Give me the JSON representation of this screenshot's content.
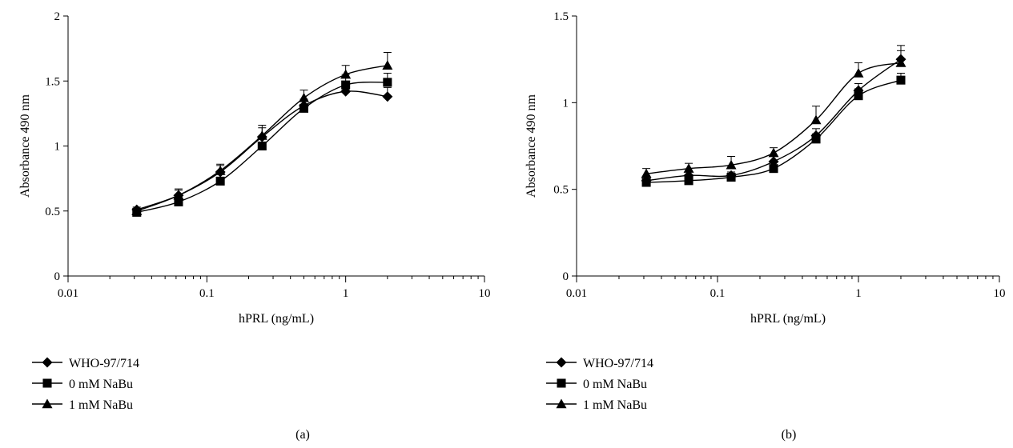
{
  "chart_data": [
    {
      "type": "scatter",
      "panel_label": "(a)",
      "xlabel": "hPRL (ng/mL)",
      "ylabel": "Absorbance 490 nm",
      "x_scale": "log",
      "xlim": [
        0.01,
        10
      ],
      "ylim": [
        0,
        2
      ],
      "x_ticks": [
        0.01,
        0.1,
        1,
        10
      ],
      "x_tick_labels": [
        "0.01",
        "0.1",
        "1",
        "10"
      ],
      "y_ticks": [
        0,
        0.5,
        1,
        1.5,
        2
      ],
      "y_tick_labels": [
        "0",
        "0.5",
        "1",
        "1.5",
        "2"
      ],
      "grid": false,
      "legend_position": "below",
      "x": [
        0.03125,
        0.0625,
        0.125,
        0.25,
        0.5,
        1,
        2
      ],
      "series": [
        {
          "name": "WHO-97/714",
          "marker": "diamond",
          "values": [
            0.51,
            0.62,
            0.8,
            1.07,
            1.31,
            1.42,
            1.38
          ],
          "errors": [
            0.02,
            0.04,
            0.05,
            0.07,
            0.05,
            0.06,
            0.07
          ]
        },
        {
          "name": "0 mM NaBu",
          "marker": "square",
          "values": [
            0.49,
            0.57,
            0.73,
            1.0,
            1.29,
            1.47,
            1.49
          ],
          "errors": [
            0.02,
            0.03,
            0.05,
            0.06,
            0.07,
            0.08,
            0.07
          ]
        },
        {
          "name": "1 mM NaBu",
          "marker": "triangle",
          "values": [
            0.5,
            0.62,
            0.81,
            1.08,
            1.37,
            1.55,
            1.62
          ],
          "errors": [
            0.02,
            0.05,
            0.05,
            0.08,
            0.06,
            0.07,
            0.1
          ]
        }
      ]
    },
    {
      "type": "scatter",
      "panel_label": "(b)",
      "xlabel": "hPRL (ng/mL)",
      "ylabel": "Absorbance 490 nm",
      "x_scale": "log",
      "xlim": [
        0.01,
        10
      ],
      "ylim": [
        0,
        1.5
      ],
      "x_ticks": [
        0.01,
        0.1,
        1,
        10
      ],
      "x_tick_labels": [
        "0.01",
        "0.1",
        "1",
        "10"
      ],
      "y_ticks": [
        0,
        0.5,
        1,
        1.5
      ],
      "y_tick_labels": [
        "0",
        "0.5",
        "1",
        "1.5"
      ],
      "grid": false,
      "legend_position": "below",
      "x": [
        0.03125,
        0.0625,
        0.125,
        0.25,
        0.5,
        1,
        2
      ],
      "series": [
        {
          "name": "WHO-97/714",
          "marker": "diamond",
          "values": [
            0.55,
            0.58,
            0.58,
            0.66,
            0.81,
            1.07,
            1.25
          ],
          "errors": [
            0.02,
            0.02,
            0.02,
            0.03,
            0.04,
            0.04,
            0.05
          ]
        },
        {
          "name": "0 mM NaBu",
          "marker": "square",
          "values": [
            0.54,
            0.55,
            0.57,
            0.62,
            0.79,
            1.04,
            1.13
          ],
          "errors": [
            0.02,
            0.02,
            0.02,
            0.02,
            0.03,
            0.04,
            0.04
          ]
        },
        {
          "name": "1 mM NaBu",
          "marker": "triangle",
          "values": [
            0.59,
            0.62,
            0.64,
            0.71,
            0.9,
            1.17,
            1.23
          ],
          "errors": [
            0.03,
            0.03,
            0.05,
            0.03,
            0.08,
            0.06,
            0.1
          ]
        }
      ]
    }
  ]
}
